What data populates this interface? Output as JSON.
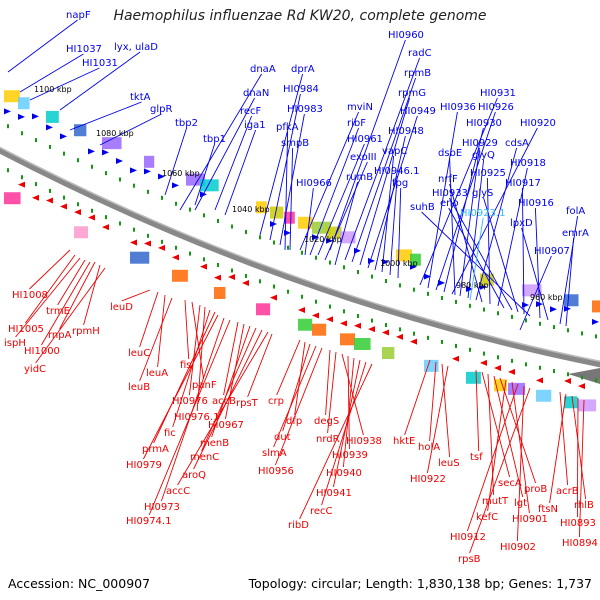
{
  "title": "Haemophilus influenzae Rd KW20, complete genome",
  "footer": {
    "accession": "Accession: NC_000907",
    "summary": "Topology: circular; Length: 1,830,138 bp; Genes: 1,737"
  },
  "colors": {
    "forward": "#0000ee",
    "reverse": "#ee0000",
    "highlight": "#33bbff",
    "backbone": "#888888"
  },
  "kbp_marks": [
    "1100 kbp",
    "1080 kbp",
    "1060 kbp",
    "1040 kbp",
    "1020 kbp",
    "1000 kbp",
    "980 kbp",
    "960 kbp"
  ],
  "top_labels": [
    "napF",
    "HI1037",
    "HI1031",
    "lyx, ulaD",
    "1100 kbp",
    "tktA",
    "glpR",
    "dnaA",
    "dnaN",
    "recF",
    "iga1",
    "tbp2",
    "tbp1",
    "dprA",
    "HI0984",
    "HI0983",
    "pfkA",
    "smpB",
    "mviN",
    "ribF",
    "HI0961",
    "exoIII",
    "rumB",
    "HI0966",
    "HI0960",
    "radC",
    "rpmB",
    "rpmG",
    "HI0949",
    "HI0948",
    "vapC",
    "HI0946.1",
    "fpg",
    "HI0931",
    "HI0936",
    "HI0926",
    "HI0930",
    "HI0920",
    "dsbE",
    "HI0929",
    "glyQ",
    "cdsA",
    "nrfF",
    "HI0925",
    "HI0918",
    "eno",
    "HI0933",
    "glyS",
    "HI0917",
    "suhB",
    "HI0923.1",
    "HI0916",
    "lpxD",
    "folA",
    "emrA",
    "HI0907"
  ],
  "bottom_labels": [
    "HI1008",
    "HI1005",
    "ispH",
    "trmE",
    "HI1000",
    "rnpA",
    "rpmH",
    "yidC",
    "leuD",
    "leuC",
    "leuA",
    "leuB",
    "fis",
    "panF",
    "HI0976",
    "HI0976.1",
    "fic",
    "prmA",
    "HI0979",
    "HI0973",
    "HI0974.1",
    "accB",
    "HI0967",
    "menB",
    "menC",
    "aroQ",
    "accC",
    "rpsT",
    "crp",
    "dfp",
    "dut",
    "slmA",
    "HI0956",
    "degS",
    "nrdR",
    "HI0938",
    "HI0939",
    "HI0940",
    "HI0941",
    "recC",
    "ribD",
    "hktE",
    "holA",
    "leuS",
    "HI0922",
    "tsf",
    "secA",
    "mutT",
    "lgt",
    "proB",
    "kefC",
    "HI0901",
    "HI0912",
    "HI0902",
    "rpsB",
    "acrB",
    "ftsN",
    "rhlB",
    "HI0893",
    "HI0894"
  ]
}
